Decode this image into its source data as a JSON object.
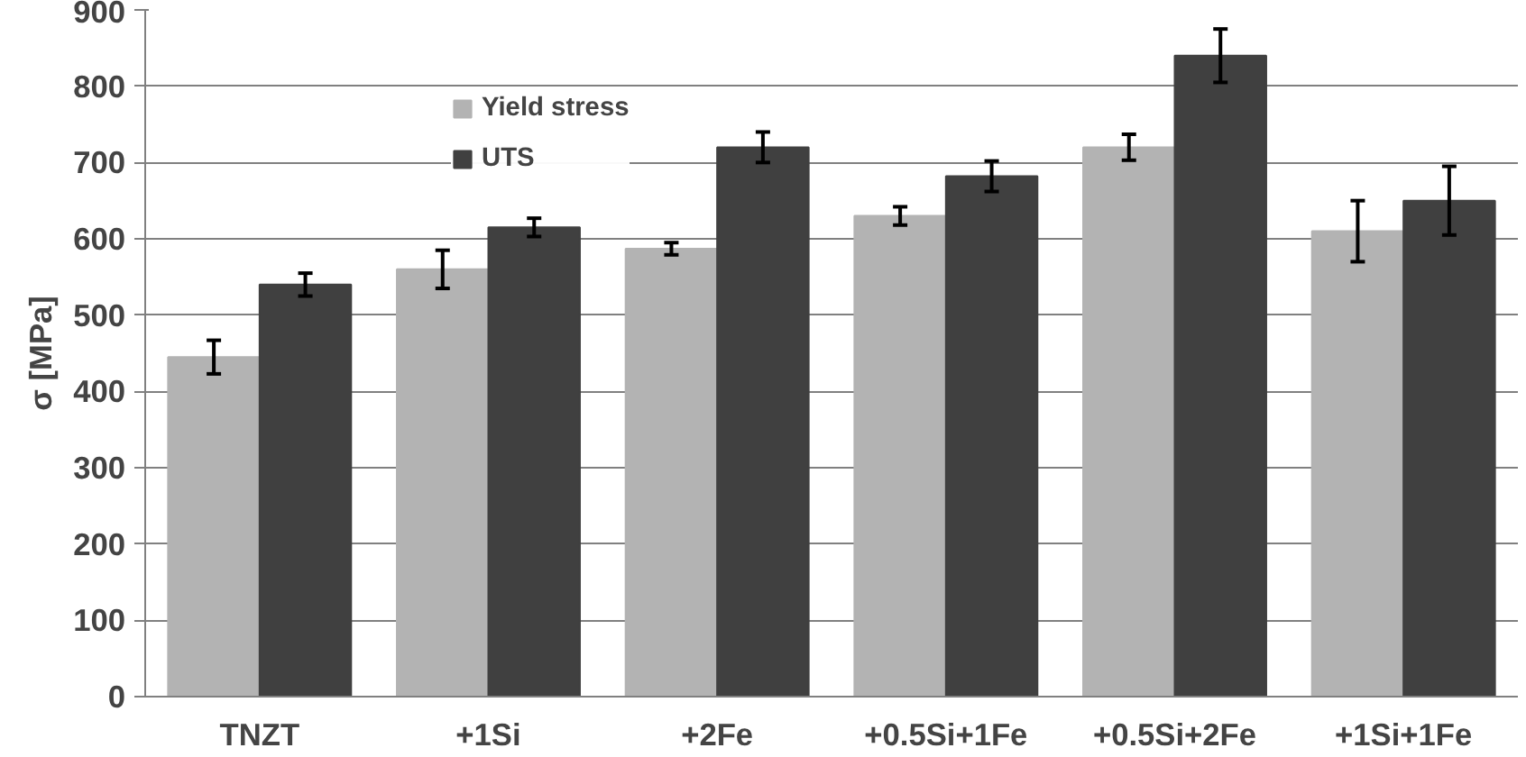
{
  "chart_data": {
    "type": "bar",
    "ylabel": "σ [MPa]",
    "categories": [
      "TNZT",
      "+1Si",
      "+2Fe",
      "+0.5Si+1Fe",
      "+0.5Si+2Fe",
      "+1Si+1Fe"
    ],
    "series": [
      {
        "name": "Yield stress",
        "color": "#b3b3b3",
        "values": [
          445,
          560,
          587,
          630,
          720,
          610
        ],
        "errors": [
          22,
          25,
          8,
          12,
          17,
          40
        ]
      },
      {
        "name": "UTS",
        "color": "#404040",
        "values": [
          540,
          615,
          720,
          682,
          840,
          650
        ],
        "errors": [
          15,
          12,
          20,
          20,
          35,
          45
        ]
      }
    ],
    "ylim": [
      0,
      900
    ],
    "yticks": [
      0,
      100,
      200,
      300,
      400,
      500,
      600,
      700,
      800,
      900
    ],
    "grid": "y",
    "legend": "top left"
  }
}
